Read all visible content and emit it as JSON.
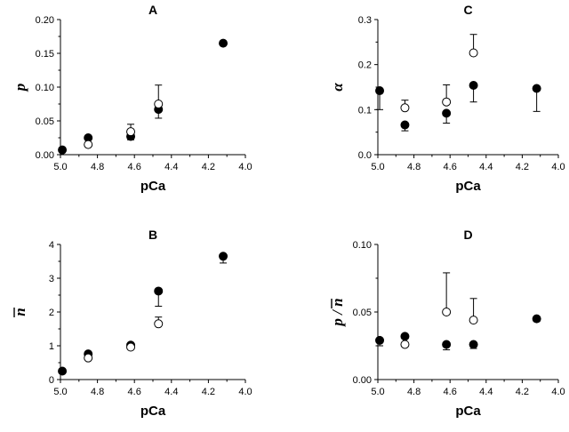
{
  "chart_data": [
    {
      "type": "scatter",
      "title": "A",
      "xlabel": "pCa",
      "ylabel": "p",
      "xlim": [
        5.0,
        4.0
      ],
      "x_reversed": true,
      "ylim": [
        0.0,
        0.2
      ],
      "xticks": [
        "5.0",
        "4.8",
        "4.6",
        "4.4",
        "4.2",
        "4.0"
      ],
      "yticks": [
        "0.00",
        "0.05",
        "0.10",
        "0.15",
        "0.20"
      ],
      "grid": false,
      "series": [
        {
          "marker": "filled-circle",
          "points": [
            {
              "x": 4.99,
              "y": 0.007
            },
            {
              "x": 4.85,
              "y": 0.025
            },
            {
              "x": 4.62,
              "y": 0.027,
              "err_low": 0.005
            },
            {
              "x": 4.47,
              "y": 0.067,
              "err_low": 0.013
            },
            {
              "x": 4.12,
              "y": 0.165
            }
          ]
        },
        {
          "marker": "open-circle",
          "points": [
            {
              "x": 4.85,
              "y": 0.015
            },
            {
              "x": 4.62,
              "y": 0.034,
              "err_high": 0.011
            },
            {
              "x": 4.47,
              "y": 0.075,
              "err_high": 0.028
            }
          ]
        }
      ]
    },
    {
      "type": "scatter",
      "title": "C",
      "xlabel": "pCa",
      "ylabel": "α",
      "xlim": [
        5.0,
        4.0
      ],
      "x_reversed": true,
      "ylim": [
        0.0,
        0.3
      ],
      "xticks": [
        "5.0",
        "4.8",
        "4.6",
        "4.4",
        "4.2",
        "4.0"
      ],
      "yticks": [
        "0.0",
        "0.1",
        "0.2",
        "0.3"
      ],
      "grid": false,
      "series": [
        {
          "marker": "filled-circle",
          "points": [
            {
              "x": 4.99,
              "y": 0.142,
              "err_low": 0.042
            },
            {
              "x": 4.85,
              "y": 0.066,
              "err_low": 0.013
            },
            {
              "x": 4.62,
              "y": 0.092,
              "err_low": 0.022
            },
            {
              "x": 4.47,
              "y": 0.154,
              "err_low": 0.037
            },
            {
              "x": 4.12,
              "y": 0.147,
              "err_low": 0.051
            }
          ]
        },
        {
          "marker": "open-circle",
          "points": [
            {
              "x": 4.85,
              "y": 0.104,
              "err_high": 0.017
            },
            {
              "x": 4.62,
              "y": 0.117,
              "err_high": 0.038
            },
            {
              "x": 4.47,
              "y": 0.226,
              "err_high": 0.041
            }
          ]
        }
      ]
    },
    {
      "type": "scatter",
      "title": "B",
      "xlabel": "pCa",
      "ylabel": "n",
      "ylabel_overbar": true,
      "xlim": [
        5.0,
        4.0
      ],
      "x_reversed": true,
      "ylim": [
        0,
        4
      ],
      "xticks": [
        "5.0",
        "4.8",
        "4.6",
        "4.4",
        "4.2",
        "4.0"
      ],
      "yticks": [
        "0",
        "1",
        "2",
        "3",
        "4"
      ],
      "grid": false,
      "series": [
        {
          "marker": "filled-circle",
          "points": [
            {
              "x": 4.99,
              "y": 0.25
            },
            {
              "x": 4.85,
              "y": 0.76
            },
            {
              "x": 4.62,
              "y": 1.02
            },
            {
              "x": 4.47,
              "y": 2.62,
              "err_low": 0.45
            },
            {
              "x": 4.12,
              "y": 3.65,
              "err_low": 0.2
            }
          ]
        },
        {
          "marker": "open-circle",
          "points": [
            {
              "x": 4.85,
              "y": 0.64
            },
            {
              "x": 4.62,
              "y": 0.96
            },
            {
              "x": 4.47,
              "y": 1.65,
              "err_high": 0.2
            }
          ]
        }
      ]
    },
    {
      "type": "scatter",
      "title": "D",
      "xlabel": "pCa",
      "ylabel": "p / n",
      "ylabel_overbar": true,
      "xlim": [
        5.0,
        4.0
      ],
      "x_reversed": true,
      "ylim": [
        0.0,
        0.1
      ],
      "xticks": [
        "5.0",
        "4.8",
        "4.6",
        "4.4",
        "4.2",
        "4.0"
      ],
      "yticks": [
        "0.00",
        "0.05",
        "0.10"
      ],
      "grid": false,
      "series": [
        {
          "marker": "filled-circle",
          "points": [
            {
              "x": 4.99,
              "y": 0.029,
              "err_low": 0.004
            },
            {
              "x": 4.85,
              "y": 0.032
            },
            {
              "x": 4.62,
              "y": 0.026,
              "err_low": 0.004
            },
            {
              "x": 4.47,
              "y": 0.026,
              "err_low": 0.003
            },
            {
              "x": 4.12,
              "y": 0.045,
              "err_low": 0.002
            }
          ]
        },
        {
          "marker": "open-circle",
          "points": [
            {
              "x": 4.85,
              "y": 0.026
            },
            {
              "x": 4.62,
              "y": 0.05,
              "err_high": 0.029
            },
            {
              "x": 4.47,
              "y": 0.044,
              "err_high": 0.016
            }
          ]
        }
      ]
    }
  ]
}
